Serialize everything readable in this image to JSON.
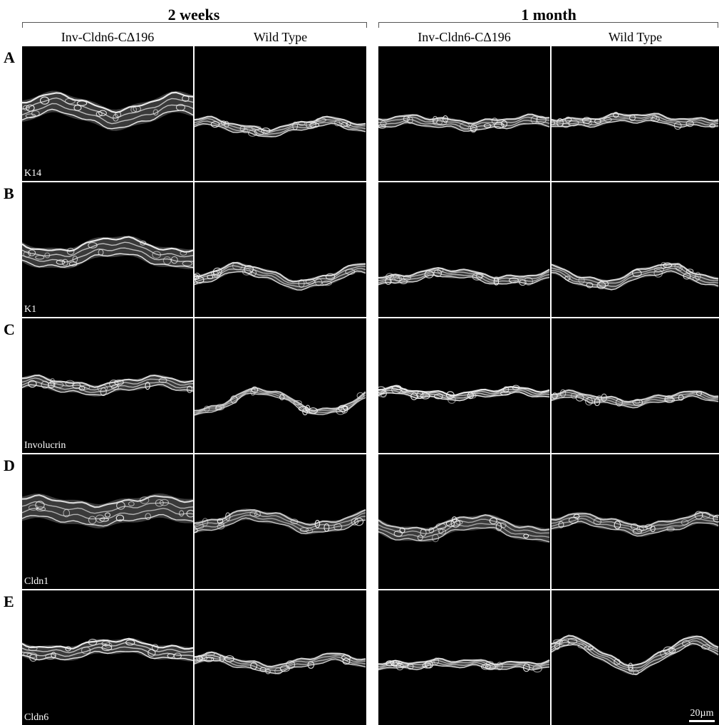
{
  "groups": [
    {
      "title": "2 weeks",
      "columns": [
        "Inv-Cldn6-CΔ196",
        "Wild Type"
      ]
    },
    {
      "title": "1 month",
      "columns": [
        "Inv-Cldn6-CΔ196",
        "Wild Type"
      ]
    }
  ],
  "rows": [
    {
      "letter": "A",
      "marker": "K14"
    },
    {
      "letter": "B",
      "marker": "K1"
    },
    {
      "letter": "C",
      "marker": "Involucrin"
    },
    {
      "letter": "D",
      "marker": "Cldn1"
    },
    {
      "letter": "E",
      "marker": "Cldn6"
    }
  ],
  "scale_bar": "20µm",
  "image_description_colors": {
    "background": "#000000",
    "stain": "#ffffff"
  }
}
